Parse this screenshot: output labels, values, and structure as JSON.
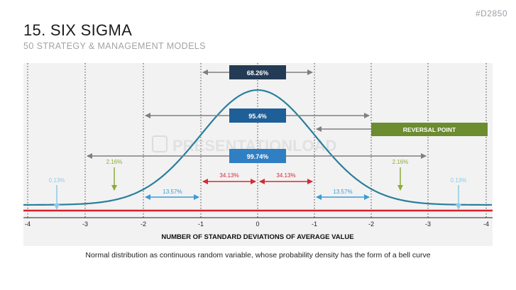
{
  "slide_id": "#D2850",
  "title": "15. SIX SIGMA",
  "subtitle": "50 STRATEGY & MANAGEMENT MODELS",
  "caption": "Normal distribution as continuous random variable, whose probability density has the form of a bell curve",
  "watermark": "PRESENTATIONLOAD",
  "axis": {
    "label": "NUMBER OF STANDARD DEVIATIONS OF AVERAGE VALUE",
    "ticks": [
      "-4",
      "-3",
      "-2",
      "-1",
      "0",
      "-1",
      "-2",
      "-3",
      "-4"
    ]
  },
  "ranges": {
    "sigma1": "68.26%",
    "sigma2": "95.4%",
    "sigma3": "99.74%"
  },
  "reversal_point": "REVERSAL POINT",
  "segments": {
    "inner_left": "34.13%",
    "inner_right": "34.13%",
    "mid_left": "13.57%",
    "mid_right": "13.57%",
    "outer_left": "2.16%",
    "outer_right": "2.16%",
    "tail_left": "0.13%",
    "tail_right": "0.13%"
  },
  "colors": {
    "curve": "#2a7f9c",
    "baseline": "#d9202a",
    "dark_box": "#243b55",
    "mid_box": "#1f5f97",
    "light_box": "#2f7fc2",
    "reversal": "#6b8c2f",
    "inner_arrows": "#d42a37",
    "mid_arrows": "#3a9bd6",
    "outer_arrows": "#8aac3a",
    "tail_arrows": "#8ccbe6"
  }
}
